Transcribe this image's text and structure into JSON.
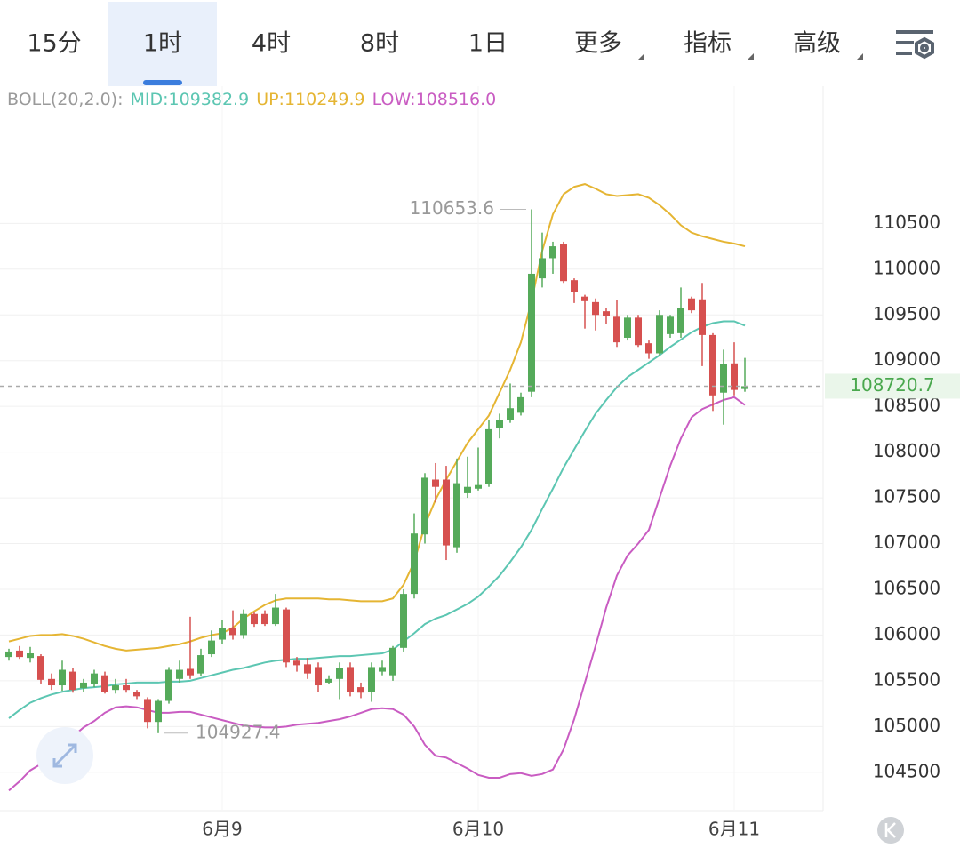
{
  "toolbar": {
    "tabs": [
      "15分",
      "1时",
      "4时",
      "8时",
      "1日",
      "更多",
      "指标",
      "高级"
    ],
    "active_tab": 1,
    "dropdown_tabs": [
      5,
      6,
      7
    ]
  },
  "chart_data": {
    "type": "candlestick",
    "indicator": "BOLL(20,2.0):",
    "up_color": "#55aa5a",
    "down_color": "#d6504f",
    "ylim": [
      104080,
      112000
    ],
    "yticks": [
      104500,
      105000,
      105500,
      106000,
      106500,
      107000,
      107500,
      108000,
      108500,
      109000,
      109500,
      110000,
      110500
    ],
    "grid": true,
    "categories": [
      null,
      null,
      null,
      null,
      null,
      null,
      null,
      null,
      null,
      null,
      null,
      null,
      null,
      null,
      null,
      null,
      null,
      null,
      null,
      null,
      "6月9",
      null,
      null,
      null,
      null,
      null,
      null,
      null,
      null,
      null,
      null,
      null,
      null,
      null,
      null,
      null,
      null,
      null,
      null,
      null,
      null,
      null,
      null,
      null,
      "6月10",
      null,
      null,
      null,
      null,
      null,
      null,
      null,
      null,
      null,
      null,
      null,
      null,
      null,
      null,
      null,
      null,
      null,
      null,
      null,
      null,
      null,
      null,
      null,
      "6月11",
      null
    ],
    "open": [
      105760,
      105830,
      105750,
      105770,
      105520,
      105450,
      105600,
      105420,
      105460,
      105560,
      105400,
      105450,
      105380,
      105300,
      105050,
      105280,
      105520,
      105630,
      105580,
      105790,
      105950,
      106080,
      106000,
      106230,
      106230,
      106120,
      106280,
      105720,
      105680,
      105650,
      105480,
      105520,
      105650,
      105430,
      105380,
      105600,
      105560,
      105860,
      106450,
      107100,
      107700,
      107700,
      106960,
      107550,
      107600,
      107650,
      108260,
      108350,
      108430,
      108660,
      109900,
      110120,
      110270,
      109880,
      109700,
      109640,
      109540,
      109480,
      109250,
      109470,
      109190,
      109080,
      109290,
      109300,
      109680,
      109670,
      109280,
      108650,
      108970,
      108690
    ],
    "high": [
      105850,
      105880,
      105870,
      105790,
      105580,
      105720,
      105640,
      105520,
      105620,
      105600,
      105520,
      105520,
      105400,
      105320,
      105300,
      105650,
      105720,
      106200,
      105850,
      106050,
      106160,
      106270,
      106280,
      106250,
      106270,
      106450,
      106300,
      105760,
      105750,
      105700,
      105560,
      105700,
      105700,
      105480,
      105700,
      105720,
      105880,
      106500,
      107330,
      107770,
      107880,
      107850,
      107930,
      107950,
      108050,
      108350,
      108420,
      108750,
      108650,
      110653.6,
      110400,
      110300,
      110300,
      109900,
      109720,
      109680,
      109580,
      109660,
      109500,
      109500,
      109220,
      109550,
      109500,
      109800,
      109700,
      109850,
      109300,
      109120,
      109200,
      109030
    ],
    "low": [
      105720,
      105740,
      105700,
      105470,
      105400,
      105390,
      105370,
      105380,
      105430,
      105360,
      105360,
      105370,
      105300,
      104980,
      104927.4,
      105250,
      105480,
      105520,
      105550,
      105760,
      105900,
      105950,
      105960,
      106090,
      106100,
      106100,
      105650,
      105600,
      105520,
      105380,
      105460,
      105300,
      105330,
      105310,
      105270,
      105560,
      105500,
      105820,
      106400,
      107000,
      107450,
      106820,
      106900,
      107500,
      107580,
      107620,
      108150,
      108320,
      108400,
      108600,
      109800,
      109950,
      109850,
      109630,
      109350,
      109330,
      109400,
      109150,
      109220,
      109150,
      109020,
      109060,
      109250,
      109250,
      109520,
      108940,
      108450,
      108300,
      108620,
      108660
    ],
    "close": [
      105820,
      105760,
      105800,
      105510,
      105450,
      105620,
      105400,
      105480,
      105580,
      105380,
      105450,
      105400,
      105330,
      105050,
      105280,
      105620,
      105620,
      105560,
      105780,
      105940,
      106080,
      106000,
      106230,
      106120,
      106120,
      106300,
      105700,
      105670,
      105580,
      105450,
      105520,
      105640,
      105380,
      105370,
      105650,
      105650,
      105860,
      106450,
      107110,
      107720,
      107620,
      106980,
      107660,
      107620,
      107640,
      108250,
      108350,
      108480,
      108600,
      109950,
      110120,
      110250,
      109870,
      109750,
      109650,
      109500,
      109490,
      109200,
      109470,
      109170,
      109080,
      109500,
      109480,
      109580,
      109550,
      109280,
      108620,
      108960,
      108680,
      108720.7
    ],
    "series": [
      {
        "name": "MID:109382.9",
        "color": "#5cc6b2",
        "values": [
          105090,
          105180,
          105260,
          105310,
          105350,
          105380,
          105400,
          105420,
          105430,
          105440,
          105460,
          105470,
          105480,
          105480,
          105480,
          105490,
          105490,
          105500,
          105530,
          105560,
          105590,
          105620,
          105640,
          105670,
          105700,
          105720,
          105730,
          105740,
          105740,
          105750,
          105760,
          105770,
          105770,
          105780,
          105790,
          105800,
          105840,
          105930,
          106020,
          106120,
          106180,
          106220,
          106280,
          106340,
          106420,
          106530,
          106650,
          106800,
          106960,
          107150,
          107380,
          107600,
          107830,
          108030,
          108230,
          108420,
          108570,
          108710,
          108820,
          108900,
          108980,
          109060,
          109150,
          109230,
          109310,
          109370,
          109410,
          109430,
          109430,
          109382.9
        ]
      },
      {
        "name": "UP:110249.9",
        "color": "#e5b533",
        "values": [
          105930,
          105960,
          105990,
          106000,
          106000,
          106010,
          105990,
          105960,
          105920,
          105880,
          105850,
          105830,
          105840,
          105850,
          105860,
          105880,
          105900,
          105930,
          105970,
          106000,
          106020,
          106080,
          106180,
          106260,
          106330,
          106380,
          106400,
          106400,
          106400,
          106400,
          106390,
          106390,
          106380,
          106370,
          106370,
          106370,
          106400,
          106550,
          106800,
          107200,
          107480,
          107700,
          107900,
          108100,
          108250,
          108400,
          108650,
          108900,
          109200,
          109650,
          110200,
          110600,
          110820,
          110900,
          110930,
          110880,
          110820,
          110800,
          110810,
          110820,
          110780,
          110700,
          110600,
          110480,
          110400,
          110360,
          110330,
          110300,
          110280,
          110249.9
        ]
      },
      {
        "name": "LOW:108516.0",
        "color": "#c95cc2",
        "values": [
          104300,
          104400,
          104520,
          104590,
          104680,
          104780,
          104890,
          104990,
          105060,
          105150,
          105210,
          105220,
          105210,
          105180,
          105150,
          105150,
          105160,
          105160,
          105130,
          105100,
          105070,
          105040,
          105010,
          105000,
          104990,
          104990,
          105000,
          105020,
          105030,
          105040,
          105060,
          105080,
          105110,
          105150,
          105190,
          105200,
          105190,
          105130,
          105000,
          104800,
          104680,
          104660,
          104600,
          104540,
          104470,
          104440,
          104440,
          104480,
          104490,
          104460,
          104480,
          104530,
          104750,
          105080,
          105480,
          105880,
          106300,
          106650,
          106870,
          107000,
          107150,
          107500,
          107850,
          108150,
          108380,
          108470,
          108520,
          108570,
          108600,
          108516.0
        ]
      }
    ],
    "annotations": {
      "max_index": 49,
      "min_index": 14
    },
    "last_price_color": "#4aa84e"
  }
}
